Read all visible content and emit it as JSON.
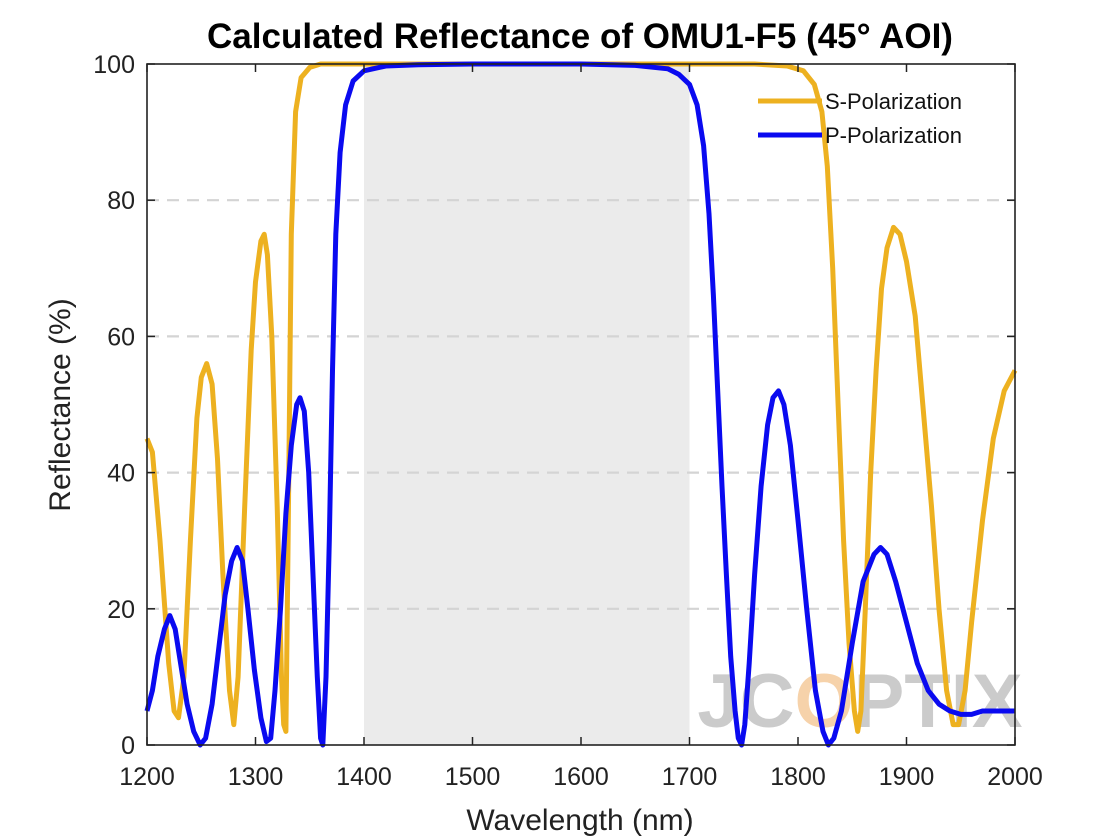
{
  "chart_data": {
    "type": "line",
    "title": "Calculated Reflectance of OMU1-F5 (45° AOI)",
    "xlabel": "Wavelength (nm)",
    "ylabel": "Reflectance (%)",
    "xlim": [
      1200,
      2000
    ],
    "ylim": [
      0,
      100
    ],
    "xticks": [
      1200,
      1300,
      1400,
      1500,
      1600,
      1700,
      1800,
      1900,
      2000
    ],
    "yticks": [
      0,
      20,
      40,
      60,
      80,
      100
    ],
    "grid": "horizontal dashed",
    "legend_position": "top-right",
    "shaded_band": [
      1400,
      1700
    ],
    "series": [
      {
        "name": "S-Polarization",
        "color": "#EDB120",
        "points": [
          [
            1200,
            45
          ],
          [
            1205,
            43
          ],
          [
            1212,
            30
          ],
          [
            1220,
            12
          ],
          [
            1225,
            5
          ],
          [
            1229,
            4
          ],
          [
            1234,
            10
          ],
          [
            1240,
            30
          ],
          [
            1246,
            48
          ],
          [
            1250,
            54
          ],
          [
            1255,
            56
          ],
          [
            1260,
            53
          ],
          [
            1265,
            42
          ],
          [
            1270,
            25
          ],
          [
            1276,
            8
          ],
          [
            1280,
            3
          ],
          [
            1284,
            10
          ],
          [
            1290,
            35
          ],
          [
            1296,
            58
          ],
          [
            1300,
            68
          ],
          [
            1305,
            74
          ],
          [
            1308,
            75
          ],
          [
            1311,
            72
          ],
          [
            1315,
            60
          ],
          [
            1320,
            35
          ],
          [
            1324,
            10
          ],
          [
            1326,
            3
          ],
          [
            1328,
            2
          ],
          [
            1330,
            30
          ],
          [
            1333,
            75
          ],
          [
            1337,
            93
          ],
          [
            1342,
            98
          ],
          [
            1350,
            99.5
          ],
          [
            1360,
            100
          ],
          [
            1400,
            100
          ],
          [
            1500,
            100
          ],
          [
            1600,
            100
          ],
          [
            1700,
            100
          ],
          [
            1760,
            100
          ],
          [
            1790,
            99.7
          ],
          [
            1805,
            99
          ],
          [
            1815,
            97
          ],
          [
            1822,
            93
          ],
          [
            1827,
            85
          ],
          [
            1832,
            70
          ],
          [
            1837,
            50
          ],
          [
            1842,
            30
          ],
          [
            1847,
            15
          ],
          [
            1852,
            5
          ],
          [
            1855,
            2
          ],
          [
            1858,
            5
          ],
          [
            1862,
            20
          ],
          [
            1867,
            40
          ],
          [
            1872,
            55
          ],
          [
            1877,
            67
          ],
          [
            1882,
            73
          ],
          [
            1888,
            76
          ],
          [
            1894,
            75
          ],
          [
            1900,
            71
          ],
          [
            1908,
            63
          ],
          [
            1915,
            50
          ],
          [
            1923,
            35
          ],
          [
            1930,
            20
          ],
          [
            1937,
            8
          ],
          [
            1943,
            3
          ],
          [
            1948,
            3
          ],
          [
            1954,
            8
          ],
          [
            1960,
            18
          ],
          [
            1970,
            33
          ],
          [
            1980,
            45
          ],
          [
            1990,
            52
          ],
          [
            2000,
            55
          ]
        ]
      },
      {
        "name": "P-Polarization",
        "color": "#0A0AF0",
        "points": [
          [
            1200,
            5
          ],
          [
            1205,
            8
          ],
          [
            1210,
            13
          ],
          [
            1216,
            17
          ],
          [
            1221,
            19
          ],
          [
            1226,
            17
          ],
          [
            1231,
            12
          ],
          [
            1237,
            6
          ],
          [
            1243,
            2
          ],
          [
            1249,
            0
          ],
          [
            1254,
            1
          ],
          [
            1260,
            6
          ],
          [
            1266,
            14
          ],
          [
            1272,
            22
          ],
          [
            1278,
            27
          ],
          [
            1283,
            29
          ],
          [
            1288,
            27
          ],
          [
            1293,
            20
          ],
          [
            1299,
            11
          ],
          [
            1305,
            4
          ],
          [
            1310,
            0.5
          ],
          [
            1314,
            1
          ],
          [
            1318,
            8
          ],
          [
            1323,
            20
          ],
          [
            1328,
            34
          ],
          [
            1333,
            44
          ],
          [
            1338,
            50
          ],
          [
            1341,
            51
          ],
          [
            1345,
            49
          ],
          [
            1349,
            40
          ],
          [
            1353,
            25
          ],
          [
            1357,
            10
          ],
          [
            1360,
            1
          ],
          [
            1362,
            0
          ],
          [
            1365,
            10
          ],
          [
            1368,
            30
          ],
          [
            1371,
            55
          ],
          [
            1374,
            75
          ],
          [
            1378,
            87
          ],
          [
            1383,
            94
          ],
          [
            1390,
            97.5
          ],
          [
            1400,
            99
          ],
          [
            1420,
            99.7
          ],
          [
            1450,
            99.9
          ],
          [
            1500,
            100
          ],
          [
            1550,
            100
          ],
          [
            1600,
            100
          ],
          [
            1650,
            99.8
          ],
          [
            1680,
            99.3
          ],
          [
            1690,
            98.5
          ],
          [
            1700,
            97
          ],
          [
            1707,
            94
          ],
          [
            1713,
            88
          ],
          [
            1718,
            78
          ],
          [
            1722,
            66
          ],
          [
            1726,
            52
          ],
          [
            1730,
            38
          ],
          [
            1734,
            25
          ],
          [
            1738,
            13
          ],
          [
            1742,
            5
          ],
          [
            1745,
            1
          ],
          [
            1748,
            0
          ],
          [
            1751,
            3
          ],
          [
            1755,
            12
          ],
          [
            1760,
            25
          ],
          [
            1766,
            38
          ],
          [
            1772,
            47
          ],
          [
            1777,
            51
          ],
          [
            1782,
            52
          ],
          [
            1787,
            50
          ],
          [
            1793,
            44
          ],
          [
            1800,
            33
          ],
          [
            1808,
            20
          ],
          [
            1816,
            8
          ],
          [
            1823,
            2
          ],
          [
            1828,
            0
          ],
          [
            1833,
            1
          ],
          [
            1840,
            5
          ],
          [
            1850,
            15
          ],
          [
            1860,
            24
          ],
          [
            1870,
            28
          ],
          [
            1876,
            29
          ],
          [
            1882,
            28
          ],
          [
            1890,
            24
          ],
          [
            1900,
            18
          ],
          [
            1910,
            12
          ],
          [
            1920,
            8
          ],
          [
            1930,
            6
          ],
          [
            1940,
            5
          ],
          [
            1950,
            4.5
          ],
          [
            1960,
            4.5
          ],
          [
            1970,
            5
          ],
          [
            1980,
            5
          ],
          [
            1990,
            5
          ],
          [
            2000,
            5
          ]
        ]
      }
    ]
  },
  "watermark": {
    "text": "JCOPTIX",
    "color": "#b9b9b9",
    "accent_color": "#f3c38e"
  }
}
